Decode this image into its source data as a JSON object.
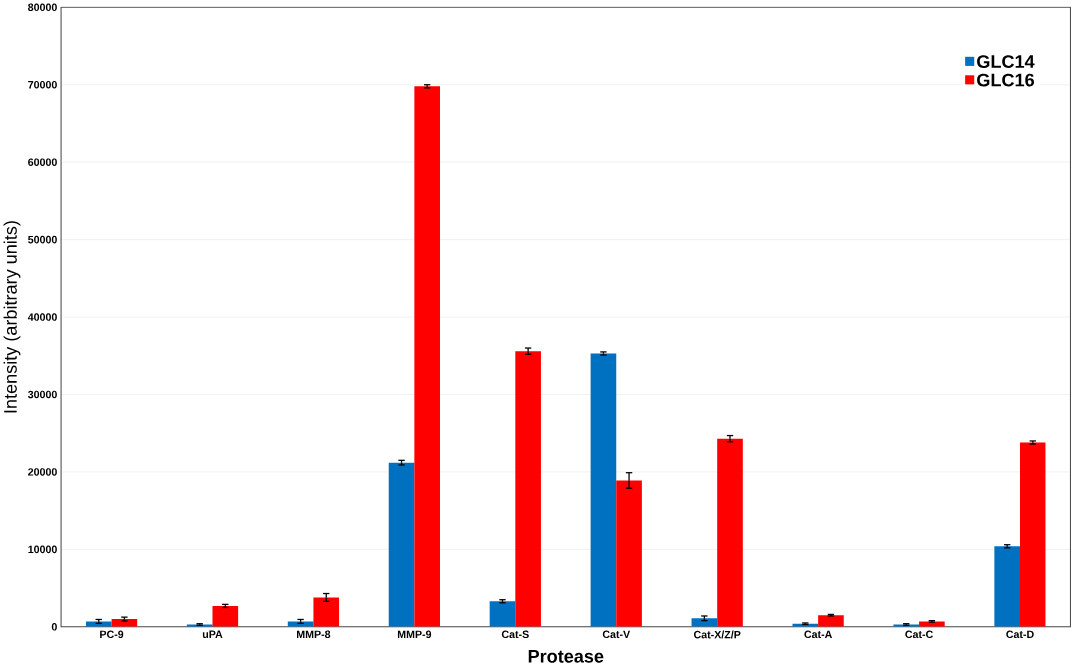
{
  "chart_data": {
    "type": "bar",
    "xlabel": "Protease",
    "ylabel": "Intensity (arbitrary units)",
    "categories": [
      "PC-9",
      "uPA",
      "MMP-8",
      "MMP-9",
      "Cat-S",
      "Cat-V",
      "Cat-X/Z/P",
      "Cat-A",
      "Cat-C",
      "Cat-D"
    ],
    "series": [
      {
        "name": "GLC14",
        "color": "#0070c0",
        "values": [
          700,
          300,
          700,
          21200,
          3300,
          35300,
          1100,
          400,
          300,
          10400
        ],
        "errors": [
          250,
          100,
          250,
          300,
          200,
          200,
          300,
          100,
          100,
          200
        ]
      },
      {
        "name": "GLC16",
        "color": "#ff0000",
        "values": [
          1000,
          2700,
          3800,
          69800,
          35600,
          18900,
          24300,
          1500,
          700,
          23800
        ],
        "errors": [
          250,
          200,
          500,
          200,
          400,
          1000,
          400,
          100,
          100,
          200
        ]
      }
    ],
    "ylim": [
      0,
      80000
    ],
    "yticks": [
      0,
      10000,
      20000,
      30000,
      40000,
      50000,
      60000,
      70000,
      80000
    ],
    "grid": "y",
    "legend": "top right"
  }
}
